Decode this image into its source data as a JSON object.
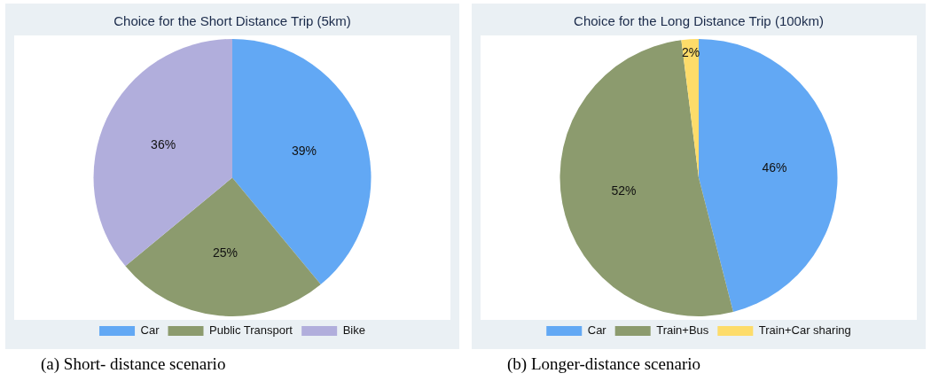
{
  "chart_data": [
    {
      "type": "pie",
      "title": "Choice for the Short Distance Trip (5km)",
      "categories": [
        "Car",
        "Public Transport",
        "Bike"
      ],
      "values": [
        39,
        25,
        36
      ],
      "value_labels": [
        "39%",
        "25%",
        "36%"
      ],
      "colors": [
        "#62a8f4",
        "#8c9b6e",
        "#b1aedc"
      ],
      "legend": "bottom",
      "annotations": [
        "(a) Short- distance scenario"
      ]
    },
    {
      "type": "pie",
      "title": "Choice for the Long Distance Trip (100km)",
      "categories": [
        "Car",
        "Train+Bus",
        "Train+Car sharing"
      ],
      "values": [
        46,
        52,
        2
      ],
      "value_labels": [
        "46%",
        "52%",
        "2%"
      ],
      "colors": [
        "#62a8f4",
        "#8c9b6e",
        "#fddc6a"
      ],
      "legend": "bottom",
      "annotations": [
        "(b) Longer-distance scenario"
      ]
    }
  ]
}
